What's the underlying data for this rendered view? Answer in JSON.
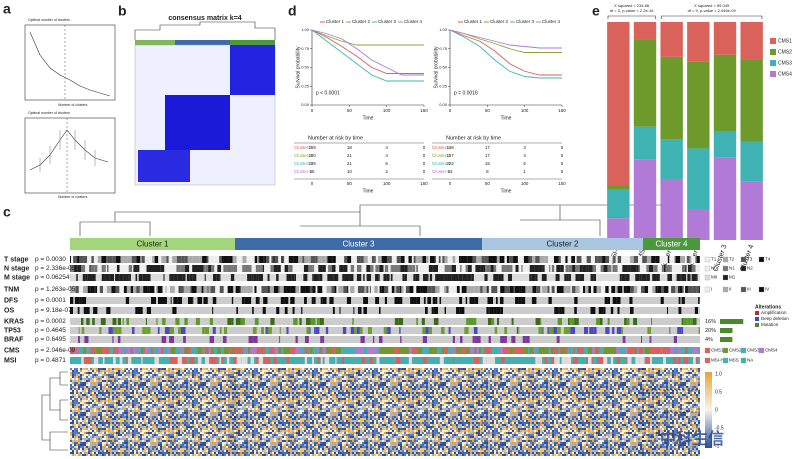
{
  "panel_labels": [
    "a",
    "b",
    "c",
    "d",
    "e"
  ],
  "elbow": {
    "titles": [
      "Optimal number of clusters",
      "Optimal number of clusters"
    ],
    "xlabel": "Number of clusters"
  },
  "consensus": {
    "title": "consensus matrix k=4"
  },
  "survival": [
    {
      "p_text": "p < 0.0001",
      "xlabel": "Time",
      "ylabel": "Survival probability",
      "risk_title": "Number at risk by time",
      "xlim": [
        0,
        150
      ],
      "ylim": [
        0,
        1
      ],
      "xticks": [
        0,
        50,
        100,
        150
      ],
      "yticks": [
        {
          "value": 0,
          "label": "0.00"
        },
        {
          "value": 0.25,
          "label": "0.25"
        },
        {
          "value": 0.5,
          "label": "0.50"
        },
        {
          "value": 0.75,
          "label": "0.75"
        },
        {
          "value": 1,
          "label": "1.00"
        }
      ],
      "x": [
        0,
        20,
        40,
        60,
        80,
        100,
        120,
        150
      ],
      "series": [
        {
          "name": "Cluster 1",
          "color": "#d9625a",
          "values": [
            1,
            0.9,
            0.78,
            0.65,
            0.5,
            0.42,
            0.42,
            0.42
          ],
          "risk": [
            159,
            18,
            4,
            0
          ]
        },
        {
          "name": "Cluster 2",
          "color": "#8fa33b",
          "values": [
            1,
            0.92,
            0.85,
            0.8,
            0.8,
            0.8,
            0.8,
            0.8
          ],
          "risk": [
            180,
            21,
            4,
            0
          ]
        },
        {
          "name": "Cluster 3",
          "color": "#40b7b0",
          "values": [
            1,
            0.85,
            0.7,
            0.55,
            0.4,
            0.32,
            0.32,
            0.32
          ],
          "risk": [
            239,
            21,
            6,
            0
          ]
        },
        {
          "name": "Cluster 4",
          "color": "#b07ad6",
          "values": [
            1,
            0.95,
            0.88,
            0.75,
            0.6,
            0.5,
            0.4,
            0.4
          ],
          "risk": [
            55,
            10,
            2,
            0
          ]
        }
      ]
    },
    {
      "p_text": "p = 0.0016",
      "xlabel": "Time",
      "ylabel": "Survival probability",
      "risk_title": "Number at risk by time",
      "xlim": [
        0,
        150
      ],
      "ylim": [
        0,
        1
      ],
      "xticks": [
        0,
        50,
        100,
        150
      ],
      "yticks": [
        {
          "value": 0,
          "label": "0.00"
        },
        {
          "value": 0.25,
          "label": "0.25"
        },
        {
          "value": 0.5,
          "label": "0.50"
        },
        {
          "value": 0.75,
          "label": "0.75"
        },
        {
          "value": 1,
          "label": "1.00"
        }
      ],
      "x": [
        0,
        20,
        40,
        60,
        80,
        100,
        120,
        150
      ],
      "series": [
        {
          "name": "Cluster 1",
          "color": "#d9625a",
          "values": [
            1,
            0.92,
            0.85,
            0.72,
            0.55,
            0.45,
            0.4,
            0.4
          ],
          "risk": [
            148,
            17,
            3,
            0
          ]
        },
        {
          "name": "Cluster 2",
          "color": "#8fa33b",
          "values": [
            1,
            0.95,
            0.88,
            0.82,
            0.75,
            0.7,
            0.7,
            0.7
          ],
          "risk": [
            157,
            17,
            4,
            0
          ]
        },
        {
          "name": "Cluster 3",
          "color": "#40b7b0",
          "values": [
            1,
            0.9,
            0.78,
            0.6,
            0.45,
            0.38,
            0.36,
            0.36
          ],
          "risk": [
            222,
            15,
            6,
            0
          ]
        },
        {
          "name": "Cluster 4",
          "color": "#b07ad6",
          "values": [
            1,
            0.95,
            0.9,
            0.85,
            0.8,
            0.78,
            0.76,
            0.76
          ],
          "risk": [
            53,
            8,
            1,
            0
          ]
        }
      ]
    }
  ],
  "cms": {
    "annotations": [
      [
        "X squared = 234.86",
        "df = 3, p-value < 2.2e-16"
      ],
      [
        "X squared = 59.045",
        "df = 9, p-value = 2.046e-09"
      ]
    ],
    "categories": [
      "MSI-H",
      "MSS",
      "Cluster 1",
      "Cluster 2",
      "Cluster 3",
      "Cluster 4"
    ],
    "ylim": [
      0,
      1
    ],
    "series": [
      {
        "name": "CMS1",
        "color": "#d9625a",
        "values": [
          0.75,
          0.08,
          0.16,
          0.18,
          0.15,
          0.17
        ]
      },
      {
        "name": "CMS2",
        "color": "#6e9a2c",
        "values": [
          0.02,
          0.4,
          0.38,
          0.4,
          0.35,
          0.38
        ]
      },
      {
        "name": "CMS3",
        "color": "#3fb3b3",
        "values": [
          0.13,
          0.15,
          0.18,
          0.28,
          0.12,
          0.18
        ]
      },
      {
        "name": "CMS4",
        "color": "#b07ad6",
        "values": [
          0.1,
          0.37,
          0.28,
          0.14,
          0.38,
          0.27
        ]
      }
    ]
  },
  "heatmap": {
    "clusters": [
      {
        "name": "Cluster 1",
        "color": "#a3d67a"
      },
      {
        "name": "Cluster 3",
        "color": "#3f6aa8"
      },
      {
        "name": "Cluster 2",
        "color": "#a9c6e0"
      },
      {
        "name": "Cluster 4",
        "color": "#4a9a3b"
      }
    ],
    "rows": [
      {
        "name": "T stage",
        "p": "p = 0.0030",
        "legend": [
          "T1",
          "T2",
          "T3",
          "T4"
        ]
      },
      {
        "name": "N stage",
        "p": "p = 2.336e-05",
        "legend": [
          "N0",
          "N1",
          "N2"
        ]
      },
      {
        "name": "M stage",
        "p": "p = 0.06254",
        "legend": [
          "M0",
          "M1"
        ]
      },
      {
        "name": "TNM",
        "p": "p = 1.263e-05",
        "legend": [
          "I",
          "II",
          "III",
          "IV"
        ]
      },
      {
        "name": "DFS",
        "p": "p = 0.0001"
      },
      {
        "name": "OS",
        "p": "p = 9.18e-07"
      },
      {
        "name": "KRAS",
        "p": "p = 0.0002",
        "pct": "16%"
      },
      {
        "name": "TP53",
        "p": "p = 0.4645",
        "pct": "20%"
      },
      {
        "name": "BRAF",
        "p": "p = 0.6495",
        "pct": "4%"
      },
      {
        "name": "CMS",
        "p": "p = 2.046e-09",
        "legend": [
          "CMS1",
          "CMS2",
          "CMS3",
          "CMS4"
        ]
      },
      {
        "name": "MSI",
        "p": "p = 0.4871",
        "legend": [
          "MSI-H",
          "MSS",
          "NA"
        ]
      }
    ],
    "alterations": {
      "title": "Alterations",
      "items": [
        "Amplification",
        "Deep deletion",
        "Mutation"
      ]
    },
    "colorbar": [
      "1.0",
      "0.5",
      "0",
      "-0.5",
      "-1"
    ]
  },
  "watermark": "中科生信"
}
